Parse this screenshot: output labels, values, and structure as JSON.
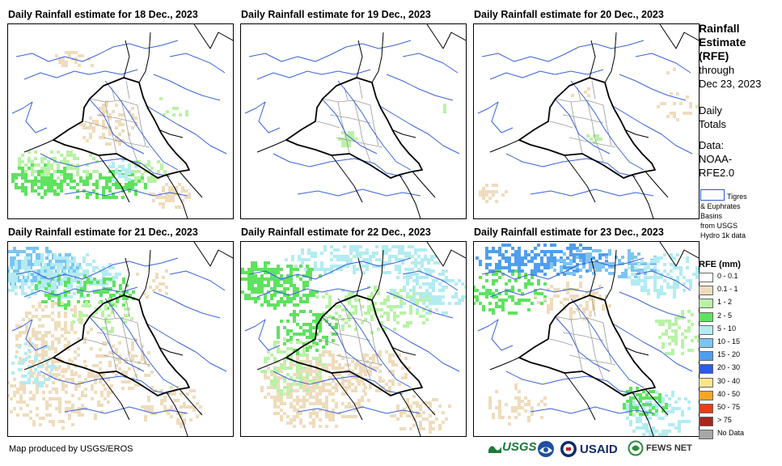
{
  "panels": [
    {
      "title": "Daily Rainfall estimate for 18 Dec., 2023"
    },
    {
      "title": "Daily Rainfall estimate for 19 Dec., 2023"
    },
    {
      "title": "Daily Rainfall estimate for 20 Dec., 2023"
    },
    {
      "title": "Daily Rainfall estimate for 21 Dec., 2023"
    },
    {
      "title": "Daily Rainfall estimate for 22 Dec., 2023"
    },
    {
      "title": "Daily Rainfall estimate for 23 Dec., 2023"
    }
  ],
  "legend": {
    "title_lines": [
      "Rainfall",
      "Estimate",
      "(RFE)"
    ],
    "through": "through",
    "date": "Dec 23, 2023",
    "daily": "Daily",
    "totals": "Totals",
    "data_label": "Data:",
    "data_src1": "NOAA-",
    "data_src2": "RFE2.0",
    "basin_line1": "Tigres",
    "basin_line2": "& Euphrates",
    "basin_line3": "Basins",
    "basin_line4": "from USGS",
    "basin_line5": "Hydro 1k data",
    "rfe_title": "RFE (mm)",
    "classes": [
      {
        "label": "0 - 0.1",
        "color": "#ffffff"
      },
      {
        "label": "0.1 - 1",
        "color": "#efdcbc"
      },
      {
        "label": "1 - 2",
        "color": "#b9f2a6"
      },
      {
        "label": "2 - 5",
        "color": "#5fe25f"
      },
      {
        "label": "5 - 10",
        "color": "#b2ecf2"
      },
      {
        "label": "10 - 15",
        "color": "#7dc4f2"
      },
      {
        "label": "15 - 20",
        "color": "#4f9ef0"
      },
      {
        "label": "20 - 30",
        "color": "#2a5ce8"
      },
      {
        "label": "30 - 40",
        "color": "#fde58a"
      },
      {
        "label": "40 - 50",
        "color": "#f5a623"
      },
      {
        "label": "50 - 75",
        "color": "#f03c14"
      },
      {
        "label": "> 75",
        "color": "#a8241c"
      },
      {
        "label": "No Data",
        "color": "#a6a6a6"
      }
    ]
  },
  "footer": {
    "credit": "Map produced by USGS/EROS"
  },
  "logos": {
    "usgs": "USGS",
    "usaid": "USAID",
    "fews": "FEWS NET"
  }
}
